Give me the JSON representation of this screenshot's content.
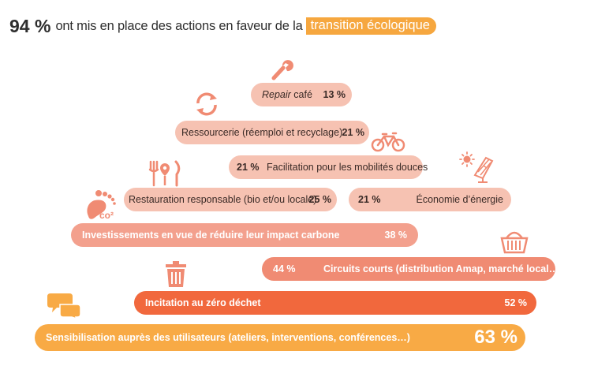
{
  "header": {
    "big_value": "94 %",
    "text": "ont mis en place des actions en faveur de la",
    "highlight": "transition écologique"
  },
  "colors": {
    "light_salmon": "#f6c2b2",
    "salmon": "#f3a08d",
    "coral": "#f08b73",
    "red_orange": "#f1683d",
    "orange": "#f8aa45",
    "icon": "#f08b73"
  },
  "chart_data": {
    "type": "bar",
    "title": "94 % ont mis en place des actions en faveur de la transition écologique",
    "unit": "%",
    "items": [
      {
        "label_italic": "Repair",
        "label_rest": " café",
        "label": "Repair café",
        "value": 13,
        "value_text": "13 %",
        "icon": "wrench-icon"
      },
      {
        "label": "Ressourcerie (réemploi et recyclage)",
        "value": 21,
        "value_text": "21 %",
        "icon": "recycle-icon"
      },
      {
        "label": "Facilitation pour les mobilités douces",
        "value": 21,
        "value_text": "21 %",
        "icon": "bicycle-icon"
      },
      {
        "label": "Restauration responsable (bio et/ou locale)",
        "value": 25,
        "value_text": "25 %",
        "icon": "cutlery-icon"
      },
      {
        "label": "Économie d’énergie",
        "value": 21,
        "value_text": "21 %",
        "icon": "solar-panel-icon"
      },
      {
        "label": "Investissements en vue de réduire leur impact carbone",
        "value": 38,
        "value_text": "38 %",
        "icon": "co2-footprint-icon"
      },
      {
        "label": "Circuits courts (distribution Amap, marché local…)",
        "value": 44,
        "value_text": "44 %",
        "icon": "basket-icon"
      },
      {
        "label": "Incitation au zéro déchet",
        "value": 52,
        "value_text": "52 %",
        "icon": "trash-bin-icon"
      },
      {
        "label": "Sensibilisation auprès des utilisateurs (ateliers, interventions, conférences…)",
        "value": 63,
        "value_text": "63 %",
        "icon": "speech-bubbles-icon"
      }
    ]
  }
}
